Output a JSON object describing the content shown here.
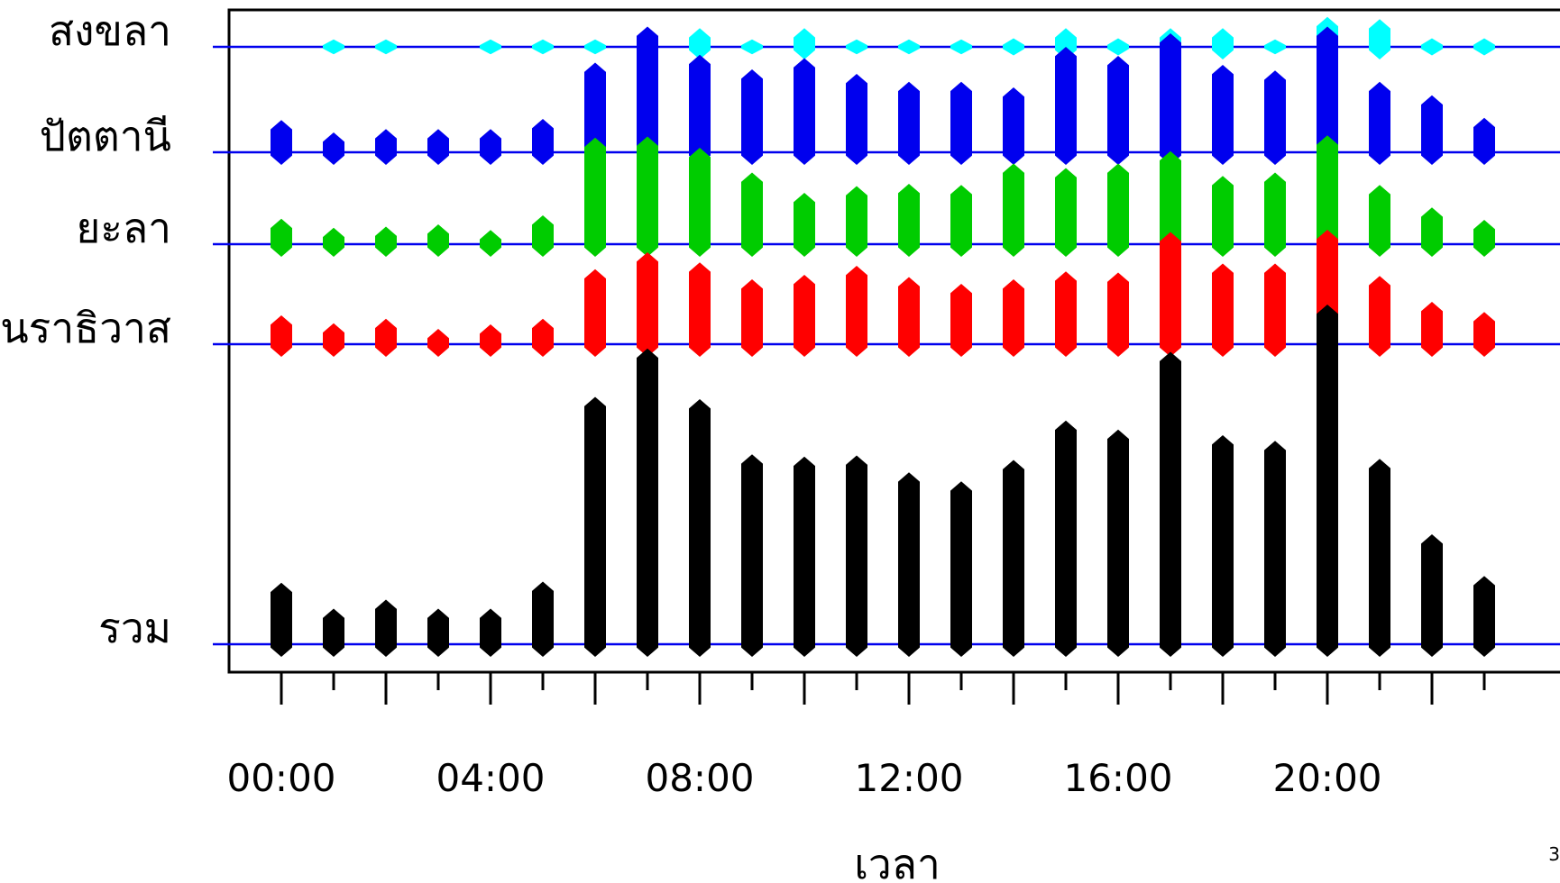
{
  "chart_data": {
    "type": "bar",
    "title": "",
    "xlabel": "เวลา",
    "ylabel": "",
    "x_hours": [
      0,
      1,
      2,
      3,
      4,
      5,
      6,
      7,
      8,
      9,
      10,
      11,
      12,
      13,
      14,
      15,
      16,
      17,
      18,
      19,
      20,
      21,
      22,
      23
    ],
    "x_tick_labels": [
      "00:00",
      "04:00",
      "08:00",
      "12:00",
      "16:00",
      "20:00"
    ],
    "x_tick_label_hours": [
      0,
      4,
      8,
      12,
      16,
      20
    ],
    "colors": {
      "baseline": "#0000ee",
      "axis": "#000000"
    },
    "series": [
      {
        "name": "สงขลา",
        "color": "#00ffff",
        "values": [
          0,
          0.5,
          0.5,
          0,
          0.5,
          0.5,
          0.5,
          0.8,
          1.5,
          0.5,
          1.5,
          0.5,
          0.5,
          0.5,
          0.6,
          1.5,
          0.6,
          1.5,
          1.5,
          0.5,
          2.5,
          2.3,
          0.6,
          0.6
        ]
      },
      {
        "name": "ปัตตานี",
        "color": "#0000ee",
        "values": [
          2.7,
          1.6,
          1.9,
          1.9,
          1.9,
          2.8,
          7.8,
          11.0,
          8.5,
          7.2,
          8.2,
          6.8,
          6.1,
          6.1,
          5.6,
          9.2,
          8.4,
          10.4,
          7.6,
          7.1,
          11.0,
          6.1,
          4.9,
          2.9
        ]
      },
      {
        "name": "ยะลา",
        "color": "#00cc00",
        "values": [
          2.1,
          1.3,
          1.4,
          1.6,
          1.1,
          2.4,
          9.3,
          9.4,
          8.4,
          6.2,
          4.4,
          5.0,
          5.2,
          5.1,
          7.0,
          6.6,
          7.0,
          8.1,
          5.9,
          6.2,
          9.5,
          5.1,
          3.1,
          2.0
        ]
      },
      {
        "name": "นราธิวาส",
        "color": "#ff0000",
        "values": [
          2.4,
          1.7,
          2.1,
          1.2,
          1.6,
          2.1,
          6.5,
          8.0,
          7.1,
          5.6,
          6.0,
          6.8,
          5.8,
          5.2,
          5.6,
          6.3,
          6.2,
          9.8,
          7.0,
          7.0,
          10.0,
          5.9,
          3.6,
          2.7
        ]
      },
      {
        "name": "รวม",
        "color": "#000000",
        "values": [
          5.3,
          3.0,
          3.8,
          3.0,
          3.0,
          5.4,
          21.8,
          26.1,
          21.6,
          16.7,
          16.5,
          16.6,
          15.1,
          14.3,
          16.2,
          19.7,
          18.9,
          25.8,
          18.4,
          17.9,
          30.0,
          16.3,
          9.6,
          5.9
        ]
      }
    ]
  },
  "page_number": "3"
}
